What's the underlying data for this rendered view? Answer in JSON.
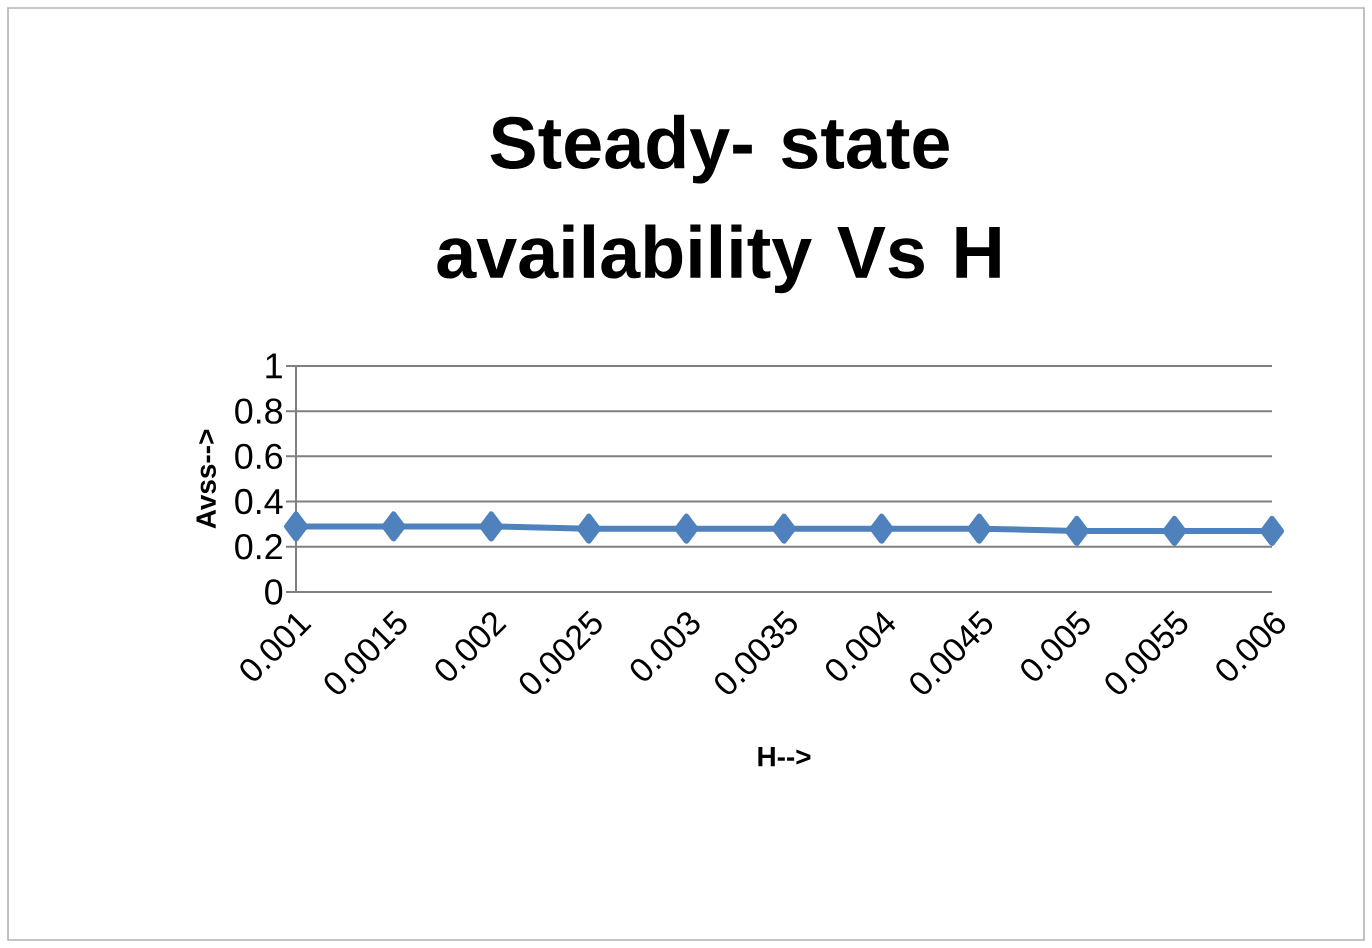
{
  "chart_data": {
    "type": "line",
    "title": "Steady- state availability Vs H",
    "xlabel": "H-->",
    "ylabel": "Avss-->",
    "categories": [
      "0.001",
      "0.0015",
      "0.002",
      "0.0025",
      "0.003",
      "0.0035",
      "0.004",
      "0.0045",
      "0.005",
      "0.0055",
      "0.006"
    ],
    "values": [
      0.29,
      0.29,
      0.29,
      0.28,
      0.28,
      0.28,
      0.28,
      0.28,
      0.27,
      0.27,
      0.27
    ],
    "color": "#4f81bd",
    "ylim": [
      0,
      1
    ],
    "yticks": [
      0,
      0.2,
      0.4,
      0.6,
      0.8,
      1
    ],
    "grid": "y",
    "marker": "diamond",
    "line_style": "solid"
  }
}
